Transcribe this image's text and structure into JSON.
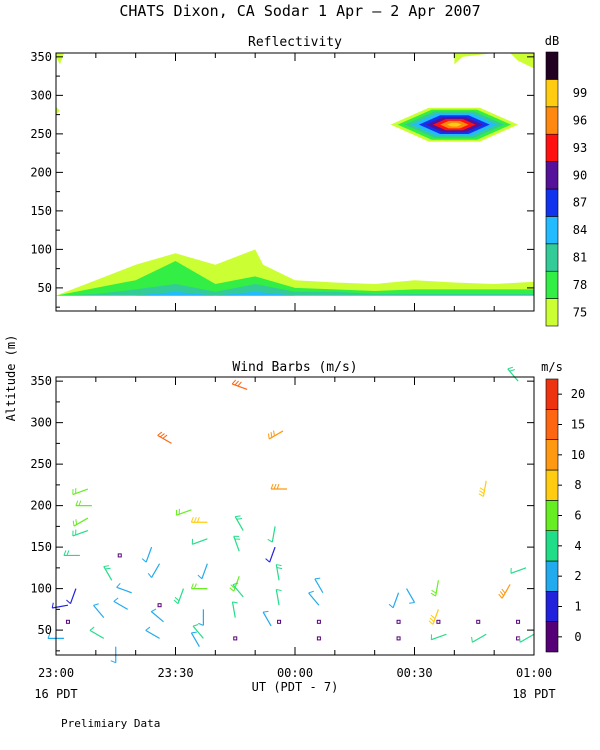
{
  "header": {
    "title": "CHATS Dixon, CA  Sodar   1 Apr –  2 Apr 2007",
    "footnote": "Prelimiary Data"
  },
  "axes": {
    "ylabel": "Altitude (m)",
    "xlabel": "UT  (PDT - 7)",
    "x_tick_labels": [
      "23:00",
      "23:30",
      "00:00",
      "00:30",
      "01:00"
    ],
    "x_start_label": "16 PDT",
    "x_end_label": "18 PDT"
  },
  "chart_data": [
    {
      "type": "heatmap",
      "title": "Reflectivity",
      "x_range_minutes": [
        0,
        120
      ],
      "ylim": [
        20,
        355
      ],
      "y_ticks": [
        50,
        100,
        150,
        200,
        250,
        300,
        350
      ],
      "colorbar": {
        "unit": "dB",
        "levels": [
          75,
          78,
          81,
          84,
          87,
          90,
          93,
          96,
          99
        ],
        "colors": [
          "#ccff33",
          "#33ee44",
          "#33cc99",
          "#22bbff",
          "#1133ee",
          "#551199",
          "#ff1111",
          "#ff8811",
          "#ffcc11",
          "#220022"
        ]
      },
      "layers": [
        {
          "level": 75,
          "x": [
            0,
            10,
            20,
            30,
            40,
            50,
            52,
            60,
            70,
            80,
            90,
            100,
            110,
            120
          ],
          "top": [
            40,
            60,
            80,
            95,
            80,
            100,
            80,
            60,
            57,
            55,
            60,
            57,
            55,
            58
          ]
        },
        {
          "level": 78,
          "x": [
            0,
            10,
            20,
            30,
            40,
            50,
            60,
            70,
            80,
            90,
            100,
            110,
            120
          ],
          "top": [
            40,
            50,
            60,
            85,
            55,
            65,
            50,
            48,
            46,
            48,
            48,
            48,
            48
          ]
        },
        {
          "level": 81,
          "x": [
            0,
            10,
            20,
            30,
            40,
            50,
            60,
            70,
            80,
            90,
            100,
            110,
            120
          ],
          "top": [
            40,
            42,
            48,
            55,
            45,
            55,
            45,
            45,
            42,
            42,
            42,
            42,
            42
          ]
        },
        {
          "level": 84,
          "x": [
            0,
            10,
            20,
            30,
            40,
            50,
            60,
            70,
            80,
            90,
            100,
            110,
            120
          ],
          "top": [
            40,
            40,
            40,
            45,
            40,
            45,
            40,
            40,
            40,
            40,
            40,
            40,
            40
          ]
        },
        {
          "level": 87,
          "x": [
            0,
            10,
            20,
            30,
            40,
            50,
            60,
            70,
            80,
            90,
            100,
            110,
            120
          ],
          "top": [
            40,
            40,
            40,
            40,
            40,
            40,
            40,
            40,
            40,
            40,
            40,
            40,
            40
          ]
        }
      ],
      "upper_patches": [
        {
          "level": 75,
          "x": [
            100,
            110,
            102,
            100
          ],
          "y": [
            355,
            355,
            350,
            340
          ]
        },
        {
          "level": 75,
          "x": [
            114,
            120,
            120,
            116
          ],
          "y": [
            355,
            355,
            335,
            345
          ]
        },
        {
          "level": 75,
          "x": [
            0,
            2,
            1,
            0
          ],
          "y": [
            355,
            355,
            340,
            350
          ]
        },
        {
          "level": 75,
          "x": [
            0,
            1,
            0,
            0
          ],
          "y": [
            285,
            280,
            275,
            280
          ]
        }
      ],
      "hotspot": {
        "x": 100,
        "y": 262,
        "rx_min": 16,
        "ry_m": 22,
        "levels": [
          75,
          78,
          81,
          84,
          87,
          90,
          93,
          96,
          99
        ]
      }
    },
    {
      "type": "scatter",
      "title": "Wind Barbs (m/s)",
      "x_range_minutes": [
        0,
        120
      ],
      "ylim": [
        20,
        355
      ],
      "y_ticks": [
        50,
        100,
        150,
        200,
        250,
        300,
        350
      ],
      "colorbar": {
        "unit": "m/s",
        "labels": [
          "0",
          "1",
          "2",
          "4",
          "6",
          "8",
          "10",
          "15",
          "20"
        ],
        "colors": [
          "#550077",
          "#2222dd",
          "#22aaee",
          "#22dd88",
          "#66ee22",
          "#ffcc11",
          "#ff9911",
          "#ff6611",
          "#ee3311"
        ]
      },
      "barbs": [
        {
          "t": 2,
          "h": 40,
          "spd": 3,
          "dir": 270
        },
        {
          "t": 3,
          "h": 60,
          "spd": 0
        },
        {
          "t": 3,
          "h": 80,
          "spd": 1.2,
          "dir": 260
        },
        {
          "t": 5,
          "h": 100,
          "spd": 1.1,
          "dir": 200
        },
        {
          "t": 6,
          "h": 140,
          "spd": 4.5,
          "dir": 270
        },
        {
          "t": 8,
          "h": 170,
          "spd": 4.5,
          "dir": 250
        },
        {
          "t": 8,
          "h": 185,
          "spd": 6,
          "dir": 240
        },
        {
          "t": 9,
          "h": 200,
          "spd": 6,
          "dir": 270
        },
        {
          "t": 8,
          "h": 220,
          "spd": 6.5,
          "dir": 250
        },
        {
          "t": 12,
          "h": 40,
          "spd": 4,
          "dir": 300
        },
        {
          "t": 12,
          "h": 65,
          "spd": 2.5,
          "dir": 320
        },
        {
          "t": 14,
          "h": 110,
          "spd": 5,
          "dir": 330
        },
        {
          "t": 16,
          "h": 140,
          "spd": 0
        },
        {
          "t": 15,
          "h": 30,
          "spd": 3,
          "dir": 180
        },
        {
          "t": 18,
          "h": 75,
          "spd": 3,
          "dir": 300
        },
        {
          "t": 19,
          "h": 95,
          "spd": 3,
          "dir": 290
        },
        {
          "t": 24,
          "h": 150,
          "spd": 3,
          "dir": 200
        },
        {
          "t": 26,
          "h": 80,
          "spd": 0
        },
        {
          "t": 26,
          "h": 130,
          "spd": 3,
          "dir": 210
        },
        {
          "t": 26,
          "h": 40,
          "spd": 3,
          "dir": 300
        },
        {
          "t": 27,
          "h": 60,
          "spd": 3,
          "dir": 310
        },
        {
          "t": 29,
          "h": 275,
          "spd": 14,
          "dir": 300
        },
        {
          "t": 32,
          "h": 100,
          "spd": 5,
          "dir": 200
        },
        {
          "t": 34,
          "h": 195,
          "spd": 6,
          "dir": 250
        },
        {
          "t": 36,
          "h": 30,
          "spd": 3,
          "dir": 330
        },
        {
          "t": 37,
          "h": 40,
          "spd": 4,
          "dir": 320
        },
        {
          "t": 37,
          "h": 75,
          "spd": 3,
          "dir": 180
        },
        {
          "t": 38,
          "h": 130,
          "spd": 3,
          "dir": 200
        },
        {
          "t": 38,
          "h": 160,
          "spd": 4,
          "dir": 250
        },
        {
          "t": 38,
          "h": 180,
          "spd": 9,
          "dir": 270
        },
        {
          "t": 38,
          "h": 100,
          "spd": 6,
          "dir": 270
        },
        {
          "t": 45,
          "h": 40,
          "spd": 0
        },
        {
          "t": 45,
          "h": 65,
          "spd": 4,
          "dir": 350
        },
        {
          "t": 46,
          "h": 115,
          "spd": 6,
          "dir": 200
        },
        {
          "t": 46,
          "h": 145,
          "spd": 5,
          "dir": 340
        },
        {
          "t": 47,
          "h": 170,
          "spd": 5,
          "dir": 330
        },
        {
          "t": 47,
          "h": 90,
          "spd": 4,
          "dir": 320
        },
        {
          "t": 48,
          "h": 340,
          "spd": 13,
          "dir": 290
        },
        {
          "t": 54,
          "h": 55,
          "spd": 3,
          "dir": 330
        },
        {
          "t": 55,
          "h": 150,
          "spd": 1,
          "dir": 200
        },
        {
          "t": 55,
          "h": 175,
          "spd": 4,
          "dir": 190
        },
        {
          "t": 56,
          "h": 60,
          "spd": 0
        },
        {
          "t": 56,
          "h": 80,
          "spd": 4,
          "dir": 350
        },
        {
          "t": 56,
          "h": 110,
          "spd": 5,
          "dir": 350
        },
        {
          "t": 57,
          "h": 290,
          "spd": 10,
          "dir": 240
        },
        {
          "t": 58,
          "h": 220,
          "spd": 11,
          "dir": 270
        },
        {
          "t": 66,
          "h": 40,
          "spd": 0
        },
        {
          "t": 66,
          "h": 60,
          "spd": 0
        },
        {
          "t": 66,
          "h": 80,
          "spd": 3,
          "dir": 320
        },
        {
          "t": 67,
          "h": 95,
          "spd": 3,
          "dir": 330
        },
        {
          "t": 86,
          "h": 40,
          "spd": 0
        },
        {
          "t": 86,
          "h": 60,
          "spd": 0
        },
        {
          "t": 86,
          "h": 95,
          "spd": 3,
          "dir": 200
        },
        {
          "t": 88,
          "h": 100,
          "spd": 3,
          "dir": 150
        },
        {
          "t": 96,
          "h": 60,
          "spd": 0
        },
        {
          "t": 96,
          "h": 75,
          "spd": 9,
          "dir": 200
        },
        {
          "t": 96,
          "h": 110,
          "spd": 6,
          "dir": 190
        },
        {
          "t": 98,
          "h": 45,
          "spd": 4,
          "dir": 250
        },
        {
          "t": 106,
          "h": 60,
          "spd": 0
        },
        {
          "t": 108,
          "h": 45,
          "spd": 4,
          "dir": 240
        },
        {
          "t": 108,
          "h": 230,
          "spd": 9,
          "dir": 190
        },
        {
          "t": 116,
          "h": 40,
          "spd": 0
        },
        {
          "t": 116,
          "h": 60,
          "spd": 0
        },
        {
          "t": 114,
          "h": 105,
          "spd": 10,
          "dir": 210
        },
        {
          "t": 118,
          "h": 125,
          "spd": 4,
          "dir": 250
        },
        {
          "t": 116,
          "h": 350,
          "spd": 5,
          "dir": 320
        },
        {
          "t": 120,
          "h": 45,
          "spd": 4,
          "dir": 240
        }
      ]
    }
  ]
}
